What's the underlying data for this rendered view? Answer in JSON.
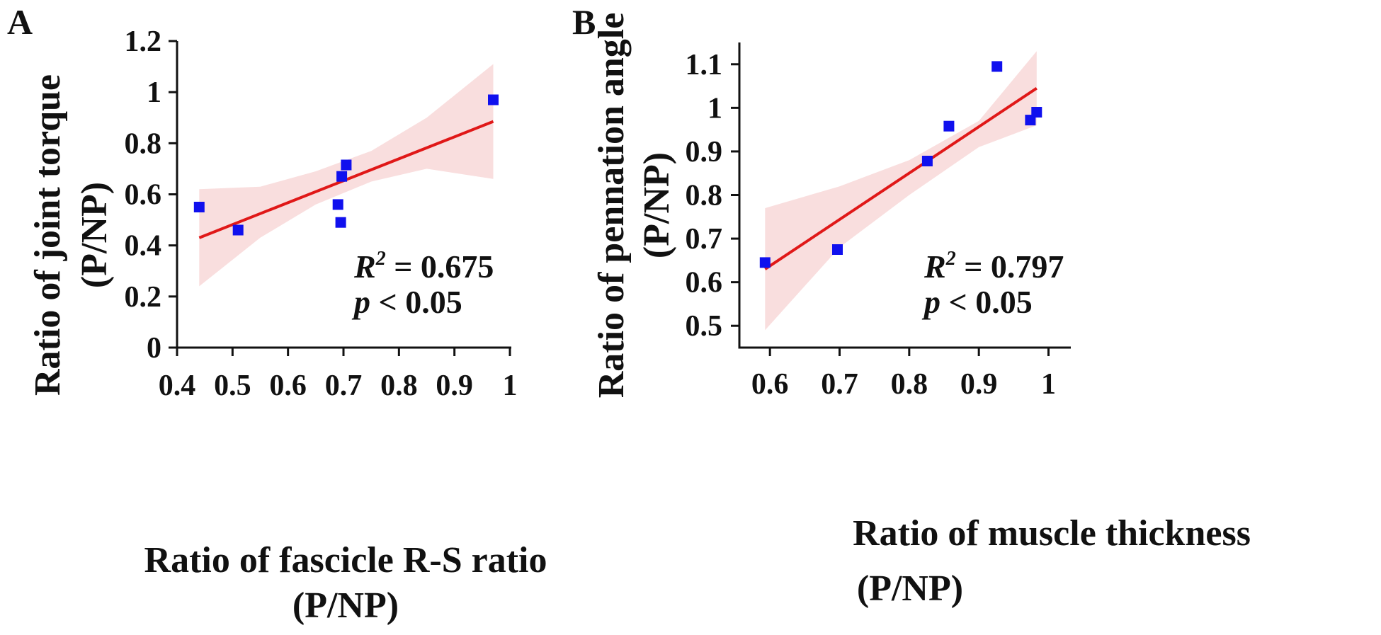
{
  "chart_data": [
    {
      "type": "scatter",
      "panel": "A",
      "xlabel_line1": "Ratio of fascicle R-S ratio",
      "xlabel_line2": "(P/NP)",
      "ylabel_line1": "Ratio of joint torque",
      "ylabel_line2": "(P/NP)",
      "xlim": [
        0.4,
        1.0
      ],
      "ylim": [
        0,
        1.2
      ],
      "xticks": [
        0.4,
        0.5,
        0.6,
        0.7,
        0.8,
        0.9,
        1.0
      ],
      "xtick_labels": [
        "0.4",
        "0.5",
        "0.6",
        "0.7",
        "0.8",
        "0.9",
        "1"
      ],
      "yticks": [
        0,
        0.2,
        0.4,
        0.6,
        0.8,
        1.0,
        1.2
      ],
      "ytick_labels": [
        "0",
        "0.2",
        "0.4",
        "0.6",
        "0.8",
        "1",
        "1.2"
      ],
      "points": [
        {
          "x": 0.44,
          "y": 0.55
        },
        {
          "x": 0.51,
          "y": 0.46
        },
        {
          "x": 0.69,
          "y": 0.56
        },
        {
          "x": 0.695,
          "y": 0.49
        },
        {
          "x": 0.697,
          "y": 0.67
        },
        {
          "x": 0.705,
          "y": 0.715
        },
        {
          "x": 0.97,
          "y": 0.97
        }
      ],
      "fit": {
        "x0": 0.44,
        "y0": 0.43,
        "x1": 0.97,
        "y1": 0.885
      },
      "ci_band": [
        {
          "x": 0.44,
          "lo": 0.24,
          "hi": 0.62
        },
        {
          "x": 0.55,
          "lo": 0.43,
          "hi": 0.63
        },
        {
          "x": 0.65,
          "lo": 0.56,
          "hi": 0.69
        },
        {
          "x": 0.75,
          "lo": 0.65,
          "hi": 0.77
        },
        {
          "x": 0.85,
          "lo": 0.7,
          "hi": 0.9
        },
        {
          "x": 0.97,
          "lo": 0.66,
          "hi": 1.11
        }
      ],
      "stat_r2_label": "R",
      "stat_r2_sup": "2",
      "stat_r2_value": " = 0.675",
      "stat_p_label": "p",
      "stat_p_value": " < 0.05",
      "marker_color": "#1010ee",
      "line_color": "#e01818",
      "band_color": "#f9dede"
    },
    {
      "type": "scatter",
      "panel": "B",
      "xlabel_line1": "Ratio of muscle thickness",
      "xlabel_line2": "(P/NP)",
      "ylabel_line1": "Ratio of pennation angle",
      "ylabel_line2": "(P/NP)",
      "xlim": [
        0.55,
        1.03
      ],
      "ylim": [
        0.45,
        1.15
      ],
      "xticks": [
        0.6,
        0.7,
        0.8,
        0.9,
        1.0
      ],
      "xtick_labels": [
        "0.6",
        "0.7",
        "0.8",
        "0.9",
        "1"
      ],
      "yticks": [
        0.5,
        0.6,
        0.7,
        0.8,
        0.9,
        1.0,
        1.1
      ],
      "ytick_labels": [
        "0.5",
        "0.6",
        "0.7",
        "0.8",
        "0.9",
        "1",
        "1.1"
      ],
      "points": [
        {
          "x": 0.593,
          "y": 0.645
        },
        {
          "x": 0.697,
          "y": 0.675
        },
        {
          "x": 0.826,
          "y": 0.878
        },
        {
          "x": 0.857,
          "y": 0.958
        },
        {
          "x": 0.926,
          "y": 1.095
        },
        {
          "x": 0.974,
          "y": 0.972
        },
        {
          "x": 0.983,
          "y": 0.99
        }
      ],
      "fit": {
        "x0": 0.593,
        "y0": 0.63,
        "x1": 0.983,
        "y1": 1.045
      },
      "ci_band": [
        {
          "x": 0.593,
          "lo": 0.49,
          "hi": 0.77
        },
        {
          "x": 0.7,
          "lo": 0.68,
          "hi": 0.82
        },
        {
          "x": 0.8,
          "lo": 0.8,
          "hi": 0.88
        },
        {
          "x": 0.9,
          "lo": 0.91,
          "hi": 0.97
        },
        {
          "x": 0.983,
          "lo": 0.96,
          "hi": 1.13
        }
      ],
      "stat_r2_label": "R",
      "stat_r2_sup": "2",
      "stat_r2_value": " = 0.797",
      "stat_p_label": "p",
      "stat_p_value": " < 0.05",
      "marker_color": "#1010ee",
      "line_color": "#e01818",
      "band_color": "#f9dede"
    }
  ]
}
